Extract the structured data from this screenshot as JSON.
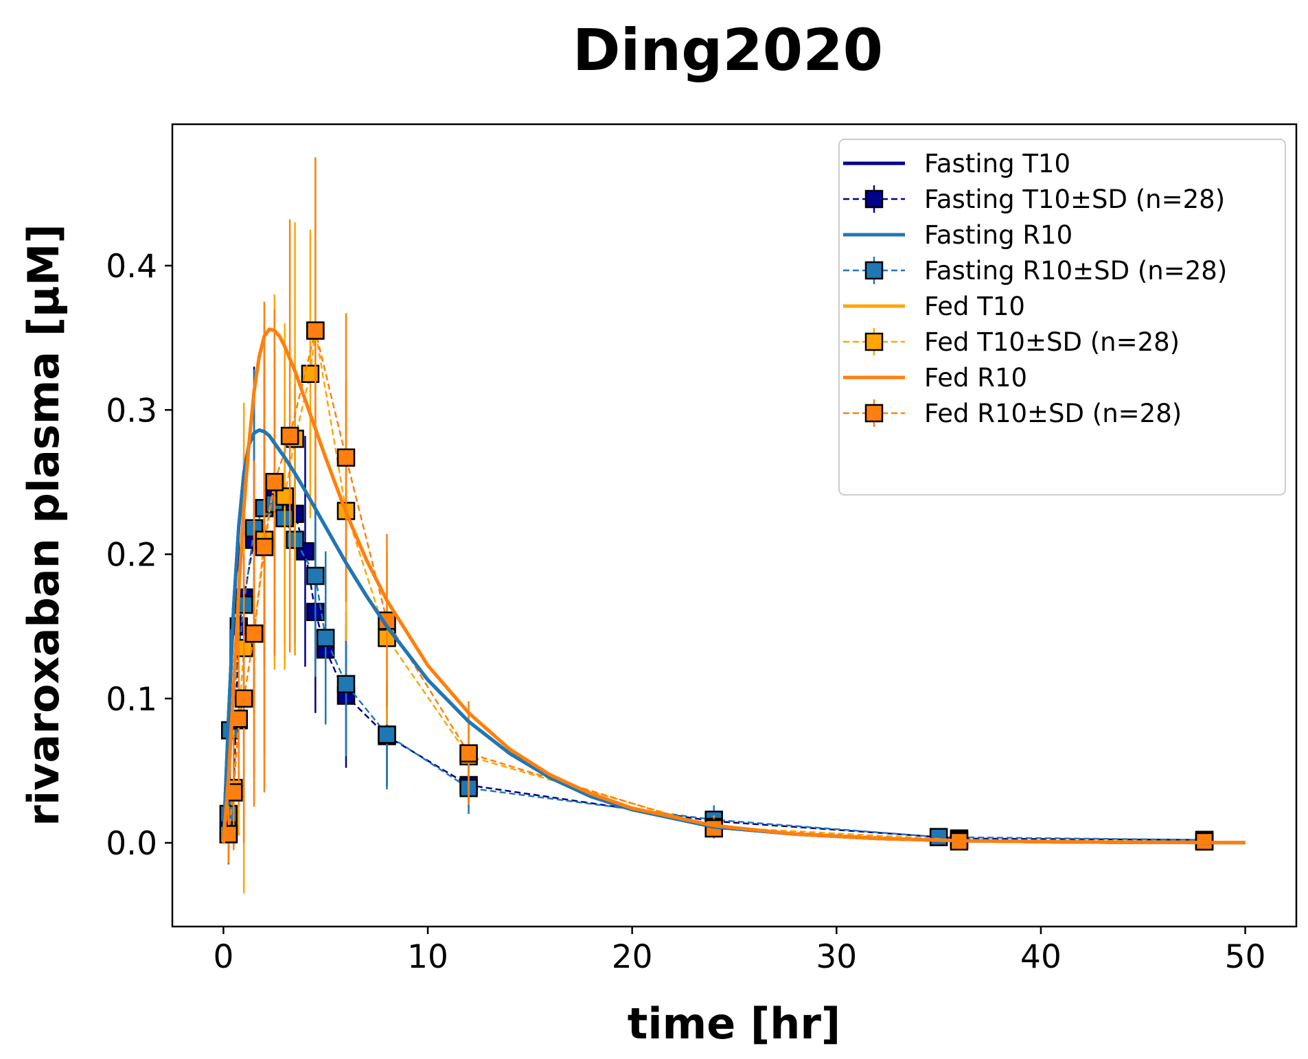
{
  "chart_data": {
    "type": "line",
    "title": "Ding2020",
    "xlabel": "time [hr]",
    "ylabel": "rivaroxaban plasma [µM]",
    "xlim": [
      -2.5,
      52.5
    ],
    "ylim": [
      -0.058,
      0.498
    ],
    "xticks": [
      0,
      10,
      20,
      30,
      40,
      50
    ],
    "xtick_labels": [
      "0",
      "10",
      "20",
      "30",
      "40",
      "50"
    ],
    "yticks": [
      0.0,
      0.1,
      0.2,
      0.3,
      0.4
    ],
    "ytick_labels": [
      "0.0",
      "0.1",
      "0.2",
      "0.3",
      "0.4"
    ],
    "grid": false,
    "legend_position": "top-right",
    "model_curves": [
      {
        "name": "Fasting T10",
        "color": "#00008b",
        "x": [
          0,
          0.25,
          0.5,
          0.75,
          1,
          1.25,
          1.5,
          1.75,
          2,
          2.25,
          2.5,
          3,
          3.5,
          4,
          5,
          6,
          7,
          8,
          10,
          12,
          14,
          16,
          18,
          20,
          24,
          28,
          32,
          36,
          40,
          44,
          48,
          50
        ],
        "y": [
          0,
          0.087,
          0.163,
          0.219,
          0.256,
          0.276,
          0.284,
          0.286,
          0.285,
          0.282,
          0.277,
          0.267,
          0.256,
          0.244,
          0.219,
          0.194,
          0.171,
          0.15,
          0.113,
          0.084,
          0.062,
          0.045,
          0.032,
          0.023,
          0.011,
          0.006,
          0.003,
          0.0015,
          0.0008,
          0.0004,
          0.0002,
          0.0001
        ]
      },
      {
        "name": "Fasting R10",
        "color": "#1f77b4",
        "x": [
          0,
          0.25,
          0.5,
          0.75,
          1,
          1.25,
          1.5,
          1.75,
          2,
          2.25,
          2.5,
          3,
          3.5,
          4,
          5,
          6,
          7,
          8,
          10,
          12,
          14,
          16,
          18,
          20,
          24,
          28,
          32,
          36,
          40,
          44,
          48,
          50
        ],
        "y": [
          0,
          0.087,
          0.163,
          0.219,
          0.256,
          0.276,
          0.284,
          0.286,
          0.285,
          0.282,
          0.277,
          0.267,
          0.256,
          0.244,
          0.219,
          0.194,
          0.171,
          0.15,
          0.113,
          0.084,
          0.062,
          0.045,
          0.032,
          0.023,
          0.011,
          0.006,
          0.003,
          0.0015,
          0.0008,
          0.0004,
          0.0002,
          0.0001
        ]
      },
      {
        "name": "Fed T10",
        "color": "#ffa500",
        "x": [
          0,
          0.25,
          0.5,
          0.75,
          1,
          1.25,
          1.5,
          1.75,
          2,
          2.25,
          2.5,
          2.75,
          3,
          3.5,
          4,
          4.5,
          5,
          6,
          7,
          8,
          10,
          12,
          14,
          16,
          18,
          20,
          24,
          28,
          32,
          36,
          40,
          44,
          48,
          50
        ],
        "y": [
          0,
          0.045,
          0.108,
          0.175,
          0.232,
          0.277,
          0.313,
          0.337,
          0.351,
          0.356,
          0.355,
          0.351,
          0.344,
          0.327,
          0.307,
          0.287,
          0.267,
          0.229,
          0.196,
          0.168,
          0.123,
          0.09,
          0.065,
          0.047,
          0.034,
          0.024,
          0.012,
          0.006,
          0.003,
          0.0015,
          0.0008,
          0.0004,
          0.0002,
          0.0001
        ]
      },
      {
        "name": "Fed R10",
        "color": "#ff7f0e",
        "x": [
          0,
          0.25,
          0.5,
          0.75,
          1,
          1.25,
          1.5,
          1.75,
          2,
          2.25,
          2.5,
          2.75,
          3,
          3.5,
          4,
          4.5,
          5,
          6,
          7,
          8,
          10,
          12,
          14,
          16,
          18,
          20,
          24,
          28,
          32,
          36,
          40,
          44,
          48,
          50
        ],
        "y": [
          0,
          0.045,
          0.108,
          0.175,
          0.232,
          0.277,
          0.313,
          0.337,
          0.351,
          0.356,
          0.355,
          0.351,
          0.344,
          0.327,
          0.307,
          0.287,
          0.267,
          0.229,
          0.196,
          0.168,
          0.123,
          0.09,
          0.065,
          0.047,
          0.034,
          0.024,
          0.012,
          0.006,
          0.003,
          0.0015,
          0.0008,
          0.0004,
          0.0002,
          0.0001
        ]
      }
    ],
    "data_series": [
      {
        "name": "Fasting T10±SD (n=28)",
        "color": "#00008b",
        "x": [
          0.25,
          0.5,
          0.75,
          1,
          1.5,
          2,
          2.5,
          3,
          3.5,
          4,
          4.5,
          5,
          6,
          8,
          12,
          24,
          36,
          48
        ],
        "y": [
          0.008,
          0.035,
          0.15,
          0.17,
          0.21,
          0.232,
          0.24,
          0.238,
          0.228,
          0.202,
          0.16,
          0.134,
          0.102,
          0.074,
          0.04,
          0.015,
          0.003,
          0.002
        ],
        "sd": [
          0.02,
          0.03,
          0.07,
          0.1,
          0.12,
          0.11,
          0.1,
          0.1,
          0.09,
          0.08,
          0.07,
          0.05,
          0.05,
          0.035,
          0.015,
          0.008,
          0.003,
          0.002
        ]
      },
      {
        "name": "Fasting R10±SD (n=28)",
        "color": "#1f77b4",
        "x": [
          0.25,
          0.33,
          1,
          1.5,
          2,
          2.5,
          3,
          3.5,
          4.5,
          5,
          6,
          8,
          12,
          24,
          35,
          48
        ],
        "y": [
          0.02,
          0.078,
          0.165,
          0.218,
          0.232,
          0.235,
          0.225,
          0.21,
          0.185,
          0.142,
          0.11,
          0.075,
          0.038,
          0.016,
          0.004,
          0.002
        ],
        "sd": [
          0.035,
          0.07,
          0.1,
          0.11,
          0.1,
          0.1,
          0.1,
          0.08,
          0.07,
          0.06,
          0.05,
          0.038,
          0.018,
          0.01,
          0.004,
          0.002
        ]
      },
      {
        "name": "Fed T10±SD (n=28)",
        "color": "#ffa500",
        "x": [
          0.25,
          0.5,
          0.75,
          1,
          1.5,
          2,
          2.5,
          3,
          3.5,
          4.25,
          4.5,
          6,
          8,
          12,
          24,
          36,
          48
        ],
        "y": [
          0.006,
          0.038,
          0.085,
          0.135,
          0.145,
          0.21,
          0.25,
          0.24,
          0.28,
          0.325,
          0.355,
          0.23,
          0.142,
          0.06,
          0.011,
          0.002,
          0.001
        ],
        "sd": [
          0.02,
          0.04,
          0.08,
          0.17,
          0.1,
          0.15,
          0.13,
          0.12,
          0.15,
          0.1,
          0.12,
          0.09,
          0.06,
          0.03,
          0.008,
          0.002,
          0.001
        ]
      },
      {
        "name": "Fed R10±SD (n=28)",
        "color": "#ff7f0e",
        "x": [
          0.25,
          0.5,
          0.75,
          1,
          1.5,
          2,
          2.5,
          3.25,
          4.5,
          6,
          8,
          12,
          24,
          36,
          48
        ],
        "y": [
          0.006,
          0.035,
          0.086,
          0.1,
          0.145,
          0.205,
          0.25,
          0.282,
          0.355,
          0.267,
          0.154,
          0.062,
          0.01,
          0.001,
          0.001
        ],
        "sd": [
          0.02,
          0.04,
          0.06,
          0.1,
          0.12,
          0.17,
          0.12,
          0.15,
          0.12,
          0.1,
          0.06,
          0.036,
          0.007,
          0.002,
          0.001
        ]
      }
    ],
    "legend": [
      "Fasting T10",
      "Fasting T10±SD (n=28)",
      "Fasting R10",
      "Fasting R10±SD (n=28)",
      "Fed T10",
      "Fed T10±SD (n=28)",
      "Fed R10",
      "Fed R10±SD (n=28)"
    ]
  }
}
